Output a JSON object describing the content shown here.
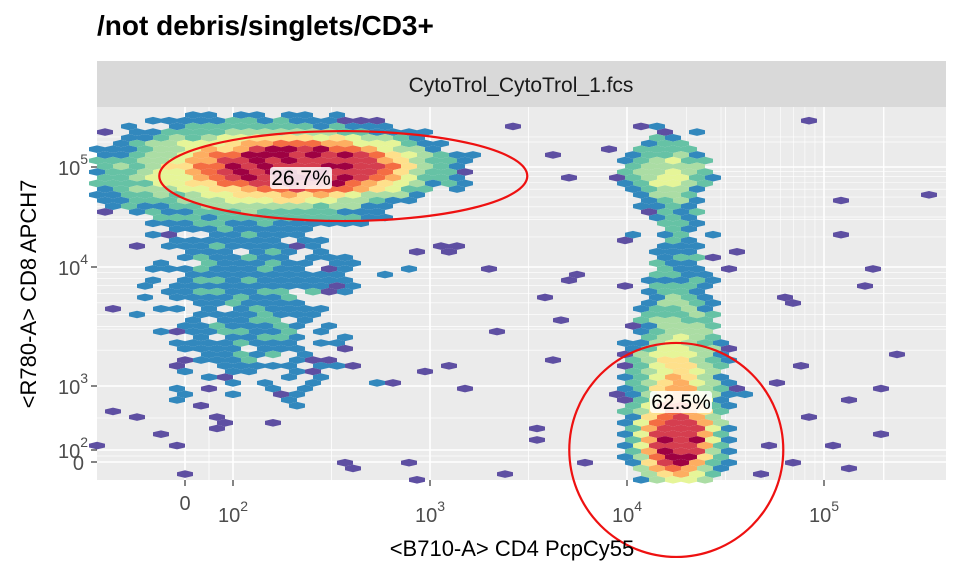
{
  "chart_data": {
    "type": "heatmap",
    "subtype": "hexbin-density",
    "title": "/not debris/singlets/CD3+",
    "facet_label": "CytoTrol_CytoTrol_1.fcs",
    "xlabel": "<B710-A> CD4 PcpCy55",
    "ylabel": "<R780-A> CD8 APCH7",
    "x_scale": "flowjo-biexponential",
    "y_scale": "flowjo-biexponential",
    "x_ticks": [
      {
        "value": 0,
        "base": "0",
        "exp": ""
      },
      {
        "value": 100,
        "base": "10",
        "exp": "2"
      },
      {
        "value": 1000,
        "base": "10",
        "exp": "3"
      },
      {
        "value": 10000,
        "base": "10",
        "exp": "4"
      },
      {
        "value": 100000,
        "base": "10",
        "exp": "5"
      }
    ],
    "y_ticks": [
      {
        "value": 0,
        "base": "0",
        "exp": ""
      },
      {
        "value": 100,
        "base": "10",
        "exp": "2"
      },
      {
        "value": 1000,
        "base": "10",
        "exp": "3"
      },
      {
        "value": 10000,
        "base": "10",
        "exp": "4"
      },
      {
        "value": 100000,
        "base": "10",
        "exp": "5"
      }
    ],
    "palette": [
      "#5e4fa2",
      "#3288bd",
      "#66c2a5",
      "#abdda4",
      "#e6f598",
      "#fee08b",
      "#fdae61",
      "#f46d43",
      "#d53e4f",
      "#9e0142"
    ],
    "gate_color": "#ee1111",
    "gates": [
      {
        "name": "CD8",
        "label": "26.7%",
        "center_x": 180,
        "center_y": 85000
      },
      {
        "name": "CD4",
        "label": "62.5%",
        "center_x": 18000,
        "center_y": 120
      }
    ],
    "populations": [
      {
        "name": "CD8+ cluster",
        "center_x": 250,
        "center_y": 100000
      },
      {
        "name": "CD4+ cluster",
        "center_x": 18000,
        "center_y": 110
      },
      {
        "name": "double positive region",
        "center_x": 15000,
        "center_y": 90000
      }
    ],
    "grid": true,
    "legend": "none"
  }
}
